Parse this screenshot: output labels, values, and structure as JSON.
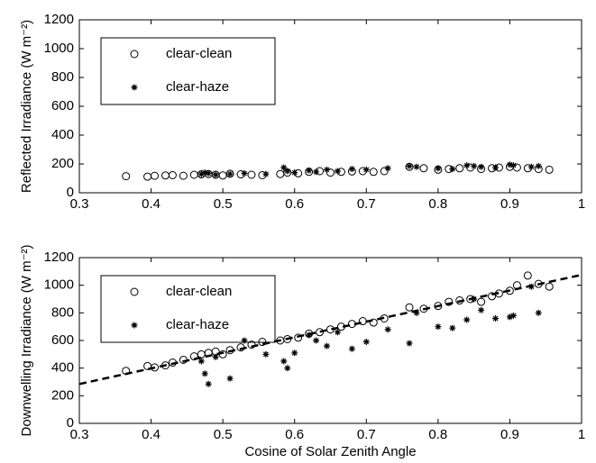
{
  "chart_data": [
    {
      "type": "scatter",
      "ylabel": "Reflected Irradiance (W m⁻²)",
      "xlim": [
        0.3,
        1
      ],
      "xticks": [
        0.3,
        0.4,
        0.5,
        0.6,
        0.7,
        0.8,
        0.9,
        1
      ],
      "ylim": [
        0,
        1200
      ],
      "yticks": [
        0,
        200,
        400,
        600,
        800,
        1000,
        1200
      ],
      "legend": "upper left",
      "series": [
        {
          "name": "clear-clean",
          "color": "#000000",
          "marker": "o",
          "x": [
            0.365,
            0.395,
            0.405,
            0.42,
            0.43,
            0.445,
            0.46,
            0.47,
            0.48,
            0.49,
            0.5,
            0.51,
            0.525,
            0.54,
            0.555,
            0.58,
            0.59,
            0.605,
            0.62,
            0.635,
            0.65,
            0.665,
            0.68,
            0.695,
            0.71,
            0.725,
            0.76,
            0.78,
            0.8,
            0.815,
            0.83,
            0.845,
            0.86,
            0.875,
            0.885,
            0.9,
            0.91,
            0.925,
            0.94,
            0.955
          ],
          "values": [
            115,
            112,
            118,
            120,
            122,
            118,
            125,
            128,
            130,
            125,
            120,
            132,
            128,
            125,
            122,
            130,
            140,
            135,
            145,
            150,
            140,
            145,
            148,
            150,
            145,
            150,
            180,
            170,
            160,
            165,
            170,
            175,
            165,
            170,
            175,
            180,
            175,
            170,
            165,
            160
          ]
        },
        {
          "name": "clear-haze",
          "color": "#000000",
          "marker": "*",
          "x": [
            0.47,
            0.475,
            0.48,
            0.49,
            0.51,
            0.53,
            0.56,
            0.585,
            0.59,
            0.6,
            0.62,
            0.63,
            0.645,
            0.66,
            0.68,
            0.7,
            0.73,
            0.76,
            0.77,
            0.8,
            0.82,
            0.84,
            0.85,
            0.86,
            0.88,
            0.9,
            0.905,
            0.93,
            0.94
          ],
          "values": [
            130,
            140,
            135,
            125,
            130,
            135,
            130,
            175,
            150,
            140,
            155,
            145,
            160,
            150,
            165,
            160,
            170,
            185,
            180,
            170,
            165,
            190,
            185,
            180,
            175,
            195,
            190,
            180,
            185
          ]
        }
      ]
    },
    {
      "type": "scatter",
      "ylabel": "Downwelling Irradiance (W m⁻²)",
      "xlabel": "Cosine of Solar Zenith Angle",
      "xlim": [
        0.3,
        1
      ],
      "xticks": [
        0.3,
        0.4,
        0.5,
        0.6,
        0.7,
        0.8,
        0.9,
        1
      ],
      "ylim": [
        0,
        1200
      ],
      "yticks": [
        0,
        200,
        400,
        600,
        800,
        1000,
        1200
      ],
      "legend": "upper left",
      "series": [
        {
          "name": "clear-clean",
          "color": "#000000",
          "marker": "o",
          "x": [
            0.365,
            0.395,
            0.405,
            0.42,
            0.43,
            0.445,
            0.46,
            0.47,
            0.48,
            0.49,
            0.5,
            0.51,
            0.525,
            0.54,
            0.555,
            0.58,
            0.59,
            0.605,
            0.62,
            0.635,
            0.65,
            0.665,
            0.68,
            0.695,
            0.71,
            0.725,
            0.76,
            0.78,
            0.8,
            0.815,
            0.83,
            0.845,
            0.86,
            0.875,
            0.885,
            0.9,
            0.91,
            0.925,
            0.94,
            0.955
          ],
          "values": [
            380,
            415,
            405,
            420,
            440,
            460,
            485,
            500,
            510,
            520,
            500,
            530,
            550,
            570,
            590,
            600,
            610,
            620,
            650,
            660,
            680,
            700,
            720,
            740,
            730,
            760,
            840,
            830,
            850,
            880,
            890,
            900,
            880,
            920,
            940,
            960,
            1000,
            1070,
            1010,
            990
          ]
        },
        {
          "name": "clear-haze",
          "color": "#000000",
          "marker": "*",
          "x": [
            0.47,
            0.475,
            0.48,
            0.49,
            0.51,
            0.53,
            0.56,
            0.585,
            0.59,
            0.6,
            0.62,
            0.63,
            0.645,
            0.66,
            0.68,
            0.7,
            0.73,
            0.76,
            0.77,
            0.8,
            0.82,
            0.84,
            0.85,
            0.86,
            0.88,
            0.9,
            0.905,
            0.93,
            0.94
          ],
          "values": [
            450,
            360,
            285,
            480,
            325,
            600,
            500,
            450,
            400,
            510,
            640,
            600,
            560,
            660,
            540,
            590,
            680,
            580,
            800,
            700,
            690,
            750,
            900,
            820,
            760,
            770,
            780,
            990,
            800
          ]
        }
      ],
      "fit": {
        "color": "#000000",
        "dashed": true,
        "x": [
          0.3,
          1
        ],
        "values": [
          285,
          1075
        ]
      }
    }
  ]
}
